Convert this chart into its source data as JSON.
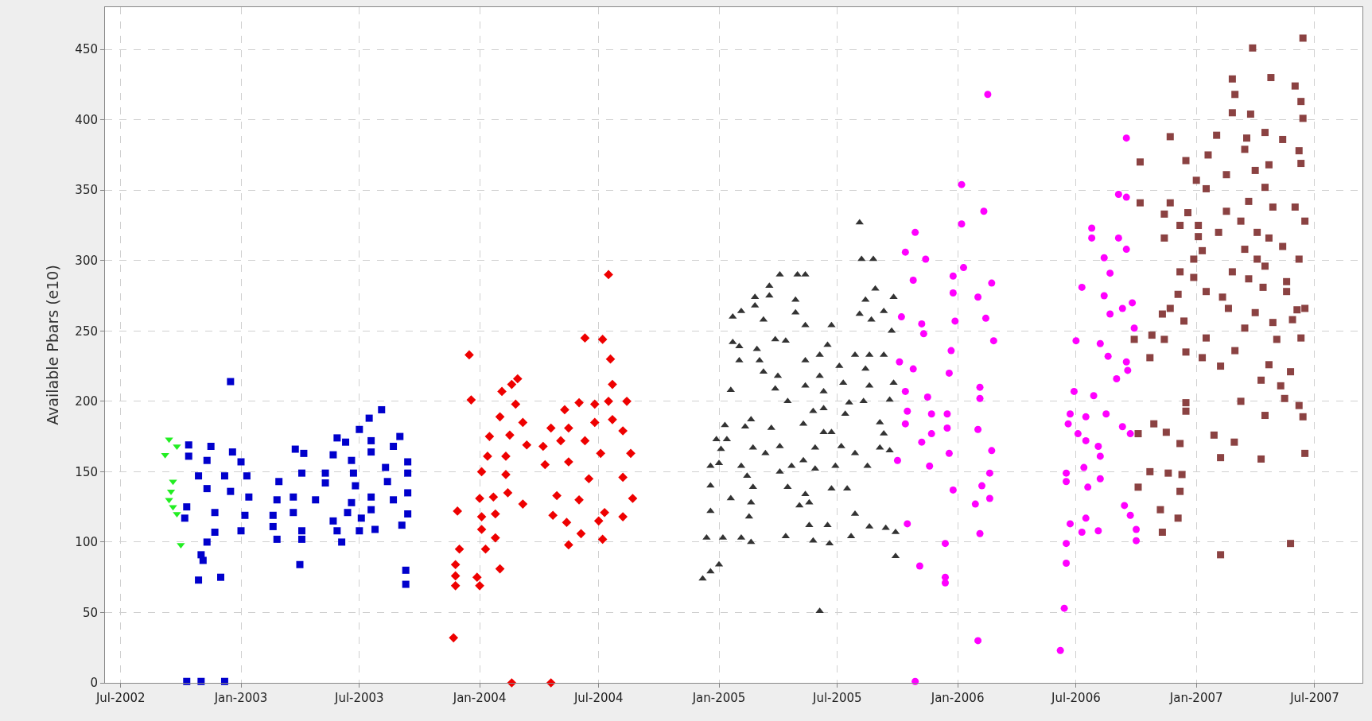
{
  "chart_data": {
    "type": "scatter",
    "ylabel": "Available Pbars (e10)",
    "xlim": [
      "2002-06-07",
      "2007-09-12"
    ],
    "ylim": [
      0,
      480
    ],
    "xticks": [
      {
        "value": "2002-07-01",
        "label": "Jul-2002"
      },
      {
        "value": "2003-01-01",
        "label": "Jan-2003"
      },
      {
        "value": "2003-07-01",
        "label": "Jul-2003"
      },
      {
        "value": "2004-01-01",
        "label": "Jan-2004"
      },
      {
        "value": "2004-07-01",
        "label": "Jul-2004"
      },
      {
        "value": "2005-01-01",
        "label": "Jan-2005"
      },
      {
        "value": "2005-07-01",
        "label": "Jul-2005"
      },
      {
        "value": "2006-01-01",
        "label": "Jan-2006"
      },
      {
        "value": "2006-07-01",
        "label": "Jul-2006"
      },
      {
        "value": "2007-01-01",
        "label": "Jan-2007"
      },
      {
        "value": "2007-07-01",
        "label": "Jul-2007"
      }
    ],
    "yticks": [
      0,
      50,
      100,
      150,
      200,
      250,
      300,
      350,
      400,
      450
    ],
    "grid": true,
    "series": [
      {
        "color": "#22ee22",
        "marker": "triangle-down",
        "x": [
          "2002-09-13",
          "2002-09-25",
          "2002-09-07",
          "2002-09-19",
          "2002-09-16",
          "2002-09-13",
          "2002-09-19",
          "2002-09-25",
          "2002-10-01"
        ],
        "values": [
          173,
          168,
          162,
          143,
          136,
          130,
          125,
          120,
          98
        ]
      },
      {
        "color": "#0000cc",
        "marker": "square",
        "x": [
          "2002-10-13",
          "2002-11-16",
          "2002-12-19",
          "2002-10-13",
          "2002-11-10",
          "2003-01-01",
          "2002-10-28",
          "2002-12-07",
          "2003-01-10",
          "2002-11-10",
          "2002-12-16",
          "2003-01-13",
          "2002-10-10",
          "2002-11-22",
          "2003-01-07",
          "2002-10-07",
          "2002-11-22",
          "2003-01-01",
          "2002-11-10",
          "2002-11-01",
          "2002-11-04",
          "2002-10-28",
          "2002-12-01",
          "2002-10-10",
          "2002-11-01",
          "2002-12-07",
          "2002-12-16",
          "2003-02-28",
          "2003-03-25",
          "2003-04-07",
          "2003-02-25",
          "2003-03-22",
          "2003-04-25",
          "2003-02-19",
          "2003-03-22",
          "2003-02-19",
          "2003-02-25",
          "2003-04-04",
          "2003-04-04",
          "2003-04-01",
          "2003-04-04",
          "2003-05-10",
          "2003-05-10",
          "2003-05-22",
          "2003-05-28",
          "2003-07-01",
          "2003-07-16",
          "2003-08-04",
          "2003-06-10",
          "2003-07-19",
          "2003-09-01",
          "2003-06-19",
          "2003-07-19",
          "2003-08-22",
          "2003-09-13",
          "2003-06-22",
          "2003-08-10",
          "2003-09-13",
          "2003-06-25",
          "2003-08-13",
          "2003-09-13",
          "2003-06-19",
          "2003-07-19",
          "2003-08-22",
          "2003-06-13",
          "2003-07-19",
          "2003-09-13",
          "2003-05-22",
          "2003-07-04",
          "2003-05-28",
          "2003-07-01",
          "2003-07-25",
          "2003-09-04",
          "2003-06-04",
          "2003-09-10",
          "2003-09-10"
        ],
        "values": [
          169,
          168,
          164,
          161,
          158,
          157,
          147,
          147,
          147,
          138,
          136,
          132,
          125,
          121,
          119,
          117,
          107,
          108,
          100,
          91,
          87,
          73,
          75,
          1,
          1,
          1,
          214,
          143,
          166,
          163,
          130,
          132,
          130,
          119,
          121,
          111,
          102,
          108,
          102,
          84,
          149,
          149,
          142,
          162,
          174,
          180,
          188,
          194,
          171,
          172,
          175,
          158,
          164,
          168,
          157,
          149,
          153,
          149,
          140,
          143,
          135,
          128,
          132,
          130,
          121,
          123,
          120,
          115,
          117,
          108,
          108,
          109,
          112,
          100,
          80,
          70
        ]
      },
      {
        "color": "#ee0000",
        "marker": "diamond",
        "x": [
          "2004-07-16",
          "2004-06-10",
          "2004-07-07",
          "2004-07-19",
          "2003-12-16",
          "2003-12-19",
          "2004-07-22",
          "2004-08-13",
          "2004-07-16",
          "2004-06-01",
          "2004-06-25",
          "2004-05-10",
          "2004-02-28",
          "2004-02-19",
          "2004-02-04",
          "2004-02-25",
          "2004-02-01",
          "2004-03-07",
          "2004-01-16",
          "2004-02-16",
          "2004-08-07",
          "2004-07-22",
          "2004-04-19",
          "2004-05-16",
          "2004-06-25",
          "2004-04-07",
          "2004-05-04",
          "2004-06-10",
          "2004-07-04",
          "2004-08-19",
          "2004-01-13",
          "2004-02-10",
          "2004-03-13",
          "2004-01-04",
          "2004-02-10",
          "2004-04-10",
          "2004-05-16",
          "2004-06-16",
          "2004-08-07",
          "2004-01-01",
          "2004-01-22",
          "2004-02-13",
          "2004-04-28",
          "2004-06-01",
          "2004-03-07",
          "2004-08-22",
          "2003-11-28",
          "2004-01-04",
          "2004-01-25",
          "2004-04-22",
          "2004-05-13",
          "2004-07-10",
          "2004-07-01",
          "2004-08-07",
          "2003-12-01",
          "2004-01-04",
          "2004-01-25",
          "2004-01-10",
          "2004-05-16",
          "2004-06-04",
          "2004-07-07",
          "2003-11-25",
          "2003-11-25",
          "2003-11-25",
          "2003-12-28",
          "2004-01-01",
          "2004-02-01",
          "2003-11-22",
          "2004-02-19",
          "2004-04-19"
        ],
        "values": [
          290,
          245,
          244,
          230,
          233,
          201,
          212,
          200,
          200,
          199,
          198,
          194,
          216,
          212,
          207,
          198,
          189,
          185,
          175,
          176,
          179,
          187,
          181,
          181,
          185,
          168,
          172,
          172,
          163,
          163,
          161,
          161,
          169,
          150,
          148,
          155,
          157,
          145,
          146,
          131,
          132,
          135,
          133,
          130,
          127,
          131,
          122,
          118,
          120,
          119,
          114,
          121,
          115,
          118,
          95,
          109,
          103,
          95,
          98,
          106,
          102,
          84,
          76,
          69,
          75,
          69,
          81,
          32,
          0,
          0
        ]
      },
      {
        "color": "#333333",
        "marker": "triangle",
        "x": [
          "2005-08-04",
          "2005-08-07",
          "2005-08-25",
          "2005-04-04",
          "2005-05-01",
          "2005-05-13",
          "2005-03-19",
          "2005-03-19",
          "2005-02-25",
          "2005-02-25",
          "2005-04-28",
          "2005-04-28",
          "2005-01-22",
          "2005-02-04",
          "2005-03-10",
          "2005-05-13",
          "2005-06-22",
          "2005-08-28",
          "2005-08-13",
          "2005-09-25",
          "2005-08-04",
          "2005-08-22",
          "2005-09-10",
          "2005-09-22",
          "2005-01-22",
          "2005-02-01",
          "2005-03-28",
          "2005-04-13",
          "2005-06-16",
          "2005-06-04",
          "2005-02-28",
          "2005-03-04",
          "2005-02-01",
          "2005-07-28",
          "2005-08-19",
          "2005-09-10",
          "2005-05-13",
          "2005-07-04",
          "2005-08-13",
          "2005-03-10",
          "2005-04-01",
          "2005-01-19",
          "2005-06-04",
          "2005-05-13",
          "2005-07-10",
          "2005-08-19",
          "2005-09-25",
          "2005-06-10",
          "2005-03-28",
          "2005-04-16",
          "2005-07-19",
          "2005-08-10",
          "2005-09-19",
          "2005-05-25",
          "2005-06-10",
          "2005-07-13",
          "2005-01-10",
          "2005-02-19",
          "2005-02-10",
          "2005-03-22",
          "2005-05-10",
          "2005-09-04",
          "2005-09-10",
          "2005-06-10",
          "2005-06-22",
          "2004-12-28",
          "2005-01-13",
          "2005-01-04",
          "2005-02-22",
          "2005-03-13",
          "2005-04-04",
          "2005-05-28",
          "2005-07-07",
          "2005-07-28",
          "2005-09-04",
          "2005-09-19",
          "2004-12-19",
          "2005-01-01",
          "2005-02-04",
          "2005-04-04",
          "2005-04-22",
          "2005-05-10",
          "2005-05-28",
          "2005-06-28",
          "2005-08-16",
          "2004-12-19",
          "2005-02-13",
          "2005-02-22",
          "2005-01-19",
          "2005-04-16",
          "2005-05-13",
          "2005-06-22",
          "2005-07-16",
          "2004-12-19",
          "2005-02-19",
          "2005-05-04",
          "2005-05-19",
          "2005-02-16",
          "2005-05-19",
          "2005-06-16",
          "2005-07-28",
          "2005-08-19",
          "2004-12-13",
          "2005-01-07",
          "2005-02-04",
          "2005-02-19",
          "2005-04-13",
          "2005-05-25",
          "2005-06-19",
          "2005-07-22",
          "2005-09-13",
          "2005-09-28",
          "2005-09-28",
          "2005-01-01",
          "2004-12-19",
          "2004-12-07",
          "2005-06-04"
        ],
        "values": [
          327,
          301,
          301,
          290,
          290,
          290,
          282,
          275,
          274,
          268,
          272,
          263,
          260,
          264,
          258,
          254,
          254,
          280,
          272,
          274,
          262,
          258,
          264,
          250,
          242,
          239,
          244,
          243,
          240,
          233,
          237,
          229,
          229,
          233,
          233,
          233,
          229,
          225,
          223,
          221,
          218,
          208,
          218,
          211,
          213,
          211,
          213,
          207,
          209,
          200,
          199,
          200,
          201,
          193,
          195,
          191,
          183,
          187,
          182,
          181,
          184,
          185,
          177,
          178,
          178,
          173,
          173,
          166,
          167,
          163,
          168,
          167,
          168,
          163,
          167,
          165,
          154,
          156,
          154,
          150,
          154,
          158,
          152,
          154,
          154,
          140,
          147,
          139,
          131,
          139,
          134,
          138,
          138,
          122,
          128,
          126,
          128,
          118,
          112,
          112,
          120,
          111,
          103,
          103,
          103,
          100,
          104,
          101,
          99,
          104,
          110,
          107,
          90,
          84,
          79,
          74,
          51
        ]
      },
      {
        "color": "#ff00ff",
        "marker": "circle",
        "x": [
          "2006-02-16",
          "2006-01-07",
          "2006-02-10",
          "2006-01-07",
          "2005-10-28",
          "2005-10-13",
          "2005-11-13",
          "2005-10-25",
          "2006-01-10",
          "2005-12-25",
          "2006-02-22",
          "2005-12-25",
          "2006-02-01",
          "2005-12-28",
          "2006-02-13",
          "2006-02-25",
          "2005-10-07",
          "2005-11-07",
          "2005-11-10",
          "2005-10-04",
          "2005-10-25",
          "2005-12-22",
          "2005-12-19",
          "2005-10-13",
          "2005-11-16",
          "2005-10-16",
          "2005-11-22",
          "2005-10-13",
          "2005-11-07",
          "2005-11-22",
          "2005-12-16",
          "2005-12-16",
          "2006-02-04",
          "2006-02-04",
          "2006-02-01",
          "2006-02-22",
          "2005-12-19",
          "2005-10-01",
          "2005-11-19",
          "2006-02-19",
          "2005-12-25",
          "2006-02-07",
          "2006-02-19",
          "2006-01-28",
          "2006-02-04",
          "2005-10-16",
          "2005-12-13",
          "2005-11-04",
          "2005-12-13",
          "2005-12-13",
          "2006-02-01",
          "2005-10-28",
          "2006-09-16",
          "2006-09-04",
          "2006-09-16",
          "2006-07-25",
          "2006-07-25",
          "2006-09-04",
          "2006-09-16",
          "2006-08-13",
          "2006-07-10",
          "2006-08-22",
          "2006-08-13",
          "2006-08-22",
          "2006-09-10",
          "2006-07-01",
          "2006-08-07",
          "2006-08-19",
          "2006-09-16",
          "2006-09-01",
          "2006-06-28",
          "2006-07-28",
          "2006-08-16",
          "2006-09-10",
          "2006-06-22",
          "2006-06-19",
          "2006-07-16",
          "2006-07-04",
          "2006-07-16",
          "2006-08-04",
          "2006-08-07",
          "2006-06-16",
          "2006-06-16",
          "2006-07-13",
          "2006-08-07",
          "2006-07-19",
          "2006-09-13",
          "2006-06-22",
          "2006-07-16",
          "2006-08-04",
          "2006-07-10",
          "2006-06-16",
          "2006-06-16",
          "2006-06-13",
          "2006-06-07",
          "2006-09-25",
          "2006-09-28",
          "2006-09-18",
          "2006-09-22",
          "2006-09-22",
          "2006-10-01",
          "2006-10-01"
        ],
        "values": [
          418,
          354,
          335,
          326,
          320,
          306,
          301,
          286,
          295,
          289,
          284,
          277,
          274,
          257,
          259,
          243,
          260,
          255,
          248,
          228,
          223,
          236,
          220,
          207,
          203,
          193,
          191,
          184,
          171,
          177,
          191,
          181,
          210,
          202,
          180,
          165,
          163,
          158,
          154,
          149,
          137,
          140,
          131,
          127,
          106,
          113,
          99,
          83,
          75,
          71,
          30,
          1,
          387,
          347,
          345,
          323,
          316,
          316,
          308,
          302,
          281,
          291,
          275,
          262,
          266,
          243,
          241,
          232,
          228,
          216,
          207,
          204,
          191,
          182,
          191,
          184,
          189,
          177,
          172,
          168,
          161,
          149,
          143,
          153,
          145,
          139,
          126,
          113,
          117,
          108,
          107,
          99,
          85,
          53,
          23,
          270,
          252,
          222,
          177,
          119,
          109,
          101
        ]
      },
      {
        "color": "#8b4242",
        "marker": "square",
        "x": [
          "2007-06-13",
          "2007-03-28",
          "2007-02-25",
          "2007-04-25",
          "2007-06-01",
          "2007-03-01",
          "2007-06-10",
          "2007-06-13",
          "2007-03-25",
          "2007-02-25",
          "2007-02-01",
          "2006-11-22",
          "2007-03-19",
          "2007-04-16",
          "2007-05-13",
          "2007-06-07",
          "2007-03-16",
          "2007-01-19",
          "2006-10-07",
          "2006-12-16",
          "2007-06-10",
          "2007-04-22",
          "2007-04-01",
          "2007-02-16",
          "2007-01-01",
          "2007-01-16",
          "2007-04-16",
          "2006-10-07",
          "2006-11-22",
          "2006-11-13",
          "2006-12-19",
          "2007-02-16",
          "2007-03-22",
          "2007-04-28",
          "2007-06-01",
          "2007-06-16",
          "2006-12-07",
          "2007-01-04",
          "2007-02-04",
          "2007-03-10",
          "2007-04-04",
          "2007-04-22",
          "2006-11-13",
          "2007-01-04",
          "2007-03-16",
          "2007-05-13",
          "2007-06-07",
          "2007-01-10",
          "2006-12-28",
          "2007-04-04",
          "2007-04-16",
          "2006-12-07",
          "2006-12-28",
          "2007-02-25",
          "2007-03-22",
          "2007-04-13",
          "2007-05-19",
          "2006-12-04",
          "2007-01-16",
          "2007-02-10",
          "2007-05-19",
          "2006-11-22",
          "2006-11-10",
          "2006-12-13",
          "2007-02-19",
          "2007-04-01",
          "2007-03-16",
          "2007-04-28",
          "2007-06-04",
          "2007-06-16",
          "2007-05-28",
          "2006-09-28",
          "2006-10-25",
          "2006-11-13",
          "2007-01-16",
          "2007-05-04",
          "2007-06-10",
          "2006-10-22",
          "2006-12-16",
          "2007-01-10",
          "2007-03-01",
          "2007-02-07",
          "2007-04-22",
          "2007-05-25",
          "2007-04-10",
          "2007-05-10",
          "2007-05-16",
          "2006-12-16",
          "2006-12-16",
          "2007-03-10",
          "2007-06-07",
          "2007-06-13",
          "2007-04-16",
          "2006-10-04",
          "2006-10-28",
          "2006-11-16",
          "2006-12-07",
          "2007-01-28",
          "2007-02-28",
          "2007-02-07",
          "2007-04-10",
          "2007-06-16",
          "2006-10-22",
          "2006-11-19",
          "2006-12-10",
          "2006-10-04",
          "2006-12-07",
          "2006-11-07",
          "2006-12-04",
          "2006-11-10",
          "2007-05-25",
          "2007-02-07"
        ],
        "values": [
          458,
          451,
          429,
          430,
          424,
          418,
          413,
          401,
          404,
          405,
          389,
          388,
          387,
          391,
          386,
          378,
          379,
          375,
          370,
          371,
          369,
          368,
          364,
          361,
          357,
          351,
          352,
          341,
          341,
          333,
          334,
          335,
          342,
          338,
          338,
          328,
          325,
          325,
          320,
          328,
          320,
          316,
          316,
          317,
          308,
          310,
          301,
          307,
          301,
          301,
          296,
          292,
          288,
          292,
          287,
          281,
          285,
          276,
          278,
          274,
          278,
          266,
          262,
          257,
          266,
          263,
          252,
          256,
          265,
          266,
          258,
          244,
          247,
          244,
          245,
          244,
          245,
          231,
          235,
          231,
          236,
          225,
          226,
          221,
          215,
          211,
          202,
          199,
          193,
          200,
          197,
          189,
          190,
          177,
          184,
          178,
          170,
          176,
          171,
          160,
          159,
          163,
          150,
          149,
          148,
          139,
          136,
          123,
          117,
          107,
          99,
          91
        ]
      }
    ]
  }
}
